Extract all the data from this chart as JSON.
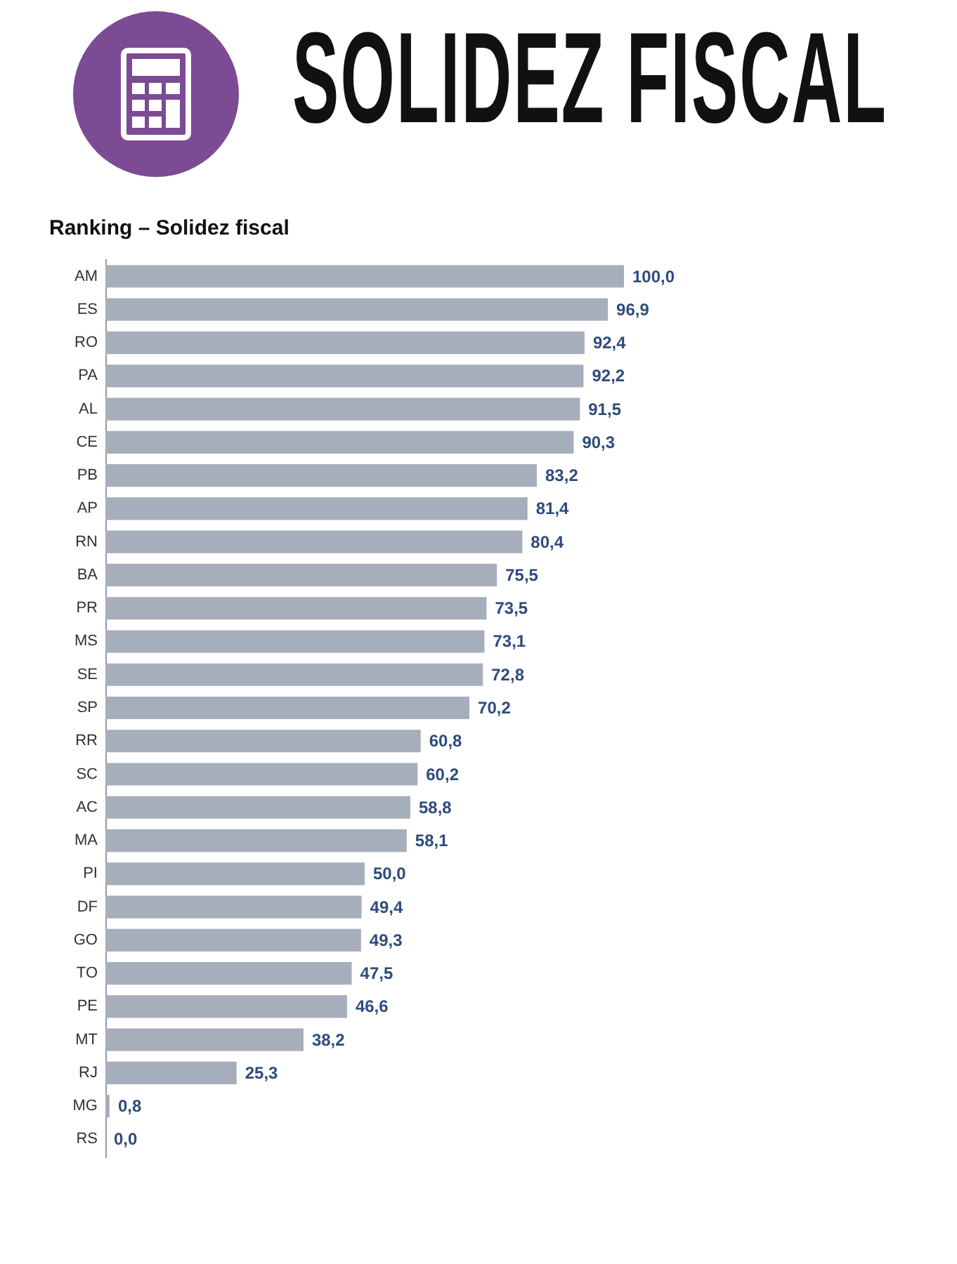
{
  "chart_data": {
    "type": "bar",
    "orientation": "horizontal",
    "title": "SOLIDEZ FISCAL",
    "subtitle": "Ranking – Solidez fiscal",
    "categories": [
      "AM",
      "ES",
      "RO",
      "PA",
      "AL",
      "CE",
      "PB",
      "AP",
      "RN",
      "BA",
      "PR",
      "MS",
      "SE",
      "SP",
      "RR",
      "SC",
      "AC",
      "MA",
      "PI",
      "DF",
      "GO",
      "TO",
      "PE",
      "MT",
      "RJ",
      "MG",
      "RS"
    ],
    "values": [
      100.0,
      96.9,
      92.4,
      92.2,
      91.5,
      90.3,
      83.2,
      81.4,
      80.4,
      75.5,
      73.5,
      73.1,
      72.8,
      70.2,
      60.8,
      60.2,
      58.8,
      58.1,
      50.0,
      49.4,
      49.3,
      47.5,
      46.6,
      38.2,
      25.3,
      0.8,
      0.0
    ],
    "value_labels": [
      "100,0",
      "96,9",
      "92,4",
      "92,2",
      "91,5",
      "90,3",
      "83,2",
      "81,4",
      "80,4",
      "75,5",
      "73,5",
      "73,1",
      "72,8",
      "70,2",
      "60,8",
      "60,2",
      "58,8",
      "58,1",
      "50,0",
      "49,4",
      "49,3",
      "47,5",
      "46,6",
      "38,2",
      "25,3",
      "0,8",
      "0,0"
    ],
    "color": "#a6adbb",
    "tick_labels": "y"
  }
}
